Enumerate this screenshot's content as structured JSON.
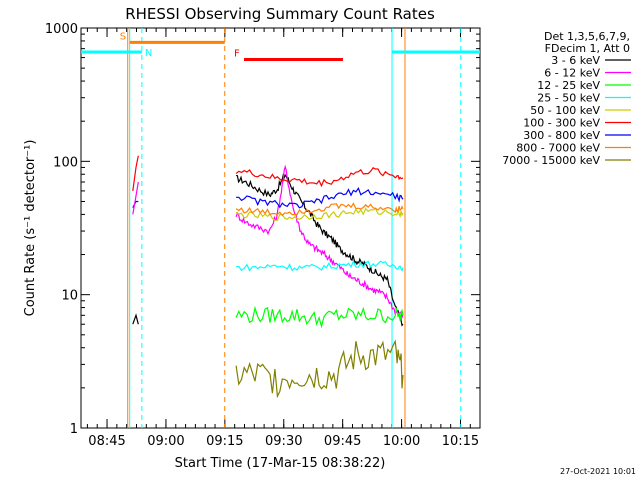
{
  "chart_data": {
    "type": "line",
    "title": "RHESSI Observing Summary Count Rates",
    "xlabel": "Start Time (17-Mar-15 08:38:22)",
    "ylabel": "Count Rate (s⁻¹ detector⁻¹)",
    "x_unit": "minutes after 08:38:22",
    "xlim": [
      0,
      101.6
    ],
    "ylim": [
      1,
      1000
    ],
    "yscale": "log",
    "x_ticks": [
      {
        "label": "08:45",
        "t": 6.63
      },
      {
        "label": "09:00",
        "t": 21.63
      },
      {
        "label": "09:15",
        "t": 36.63
      },
      {
        "label": "09:30",
        "t": 51.63
      },
      {
        "label": "09:45",
        "t": 66.63
      },
      {
        "label": "10:00",
        "t": 81.63
      },
      {
        "label": "10:15",
        "t": 96.63
      }
    ],
    "y_ticks": [
      {
        "label": "1",
        "v": 1
      },
      {
        "label": "10",
        "v": 10
      },
      {
        "label": "100",
        "v": 100
      },
      {
        "label": "1000",
        "v": 1000
      }
    ],
    "legend_header": [
      "Det 1,3,5,6,7,9,",
      "FDecim 1, Att 0"
    ],
    "timestamp": "27-Oct-2021 10:01",
    "flags": [
      {
        "label": "S",
        "color": "#ff7f00",
        "t0": 12.4,
        "t1": 36.6,
        "level": 780
      },
      {
        "label": "N",
        "color": "#00ffff",
        "t0": 0,
        "t1": 15.5,
        "level": 660
      },
      {
        "label": "N",
        "color": "#00ffff",
        "t0": 79.2,
        "t1": 101.6,
        "level": 660
      },
      {
        "label": "F",
        "color": "#ff0000",
        "t0": 41.5,
        "t1": 66.7,
        "level": 580
      }
    ],
    "night_boundaries": [
      {
        "t": 12.4,
        "color": "#00ffff",
        "style": "solid"
      },
      {
        "t": 15.5,
        "color": "#00ffff",
        "style": "dashed"
      },
      {
        "t": 79.2,
        "color": "#00ffff",
        "style": "solid"
      },
      {
        "t": 96.7,
        "color": "#00ffff",
        "style": "dashed"
      }
    ],
    "saa_boundaries": [
      {
        "t": 11.9,
        "color": "#ff7f00",
        "style": "solid"
      },
      {
        "t": 36.6,
        "color": "#ff7f00",
        "style": "dashed"
      },
      {
        "t": 82.5,
        "color": "#ff7f00",
        "style": "solid"
      }
    ],
    "series": [
      {
        "name": "3 - 6 keV",
        "color": "#000000",
        "x": [
          39.5,
          42,
          45,
          48,
          50,
          52,
          54,
          56,
          58,
          60,
          62,
          64,
          66,
          68,
          70,
          72,
          74,
          76,
          78,
          80,
          82
        ],
        "y": [
          75,
          70,
          62,
          56,
          62,
          80,
          62,
          50,
          42,
          34,
          29,
          26,
          22,
          20,
          18,
          17,
          15.5,
          14,
          13,
          8,
          6
        ]
      },
      {
        "name": "6 - 12 keV",
        "color": "#ff00ff",
        "x": [
          39.5,
          42,
          45,
          48,
          50,
          52,
          54,
          56,
          58,
          60,
          62,
          64,
          66,
          68,
          70,
          72,
          74,
          76,
          78,
          80,
          82
        ],
        "y": [
          40,
          35,
          32,
          30,
          40,
          90,
          45,
          30,
          24,
          22,
          20,
          18,
          16,
          14,
          13,
          12,
          11,
          10.5,
          9.5,
          7.5,
          7
        ]
      },
      {
        "name": "12 - 25 keV",
        "color": "#00ff00",
        "x": [
          39.5,
          45,
          50,
          55,
          60,
          65,
          70,
          75,
          80,
          82
        ],
        "y": [
          7,
          7,
          7,
          7,
          6.5,
          7,
          7,
          7,
          7,
          7
        ]
      },
      {
        "name": "25 - 50 keV",
        "color": "#00ffff",
        "x": [
          39.5,
          45,
          50,
          55,
          60,
          65,
          70,
          75,
          80,
          82
        ],
        "y": [
          16,
          16,
          16.5,
          16,
          16,
          16.5,
          17,
          17,
          16.5,
          16
        ]
      },
      {
        "name": "50 - 100 keV",
        "color": "#cccc00",
        "x": [
          39.5,
          45,
          50,
          55,
          60,
          65,
          70,
          75,
          80,
          82
        ],
        "y": [
          40,
          39,
          38,
          38,
          39,
          40,
          42,
          42,
          41,
          41
        ]
      },
      {
        "name": "100 - 300 keV",
        "color": "#ff0000",
        "x": [
          39.5,
          45,
          50,
          55,
          60,
          65,
          70,
          75,
          80,
          82
        ],
        "y": [
          85,
          80,
          74,
          72,
          68,
          72,
          82,
          85,
          78,
          75
        ]
      },
      {
        "name": "300 - 800 keV",
        "color": "#0000ff",
        "x": [
          39.5,
          45,
          50,
          55,
          60,
          65,
          70,
          75,
          80,
          82
        ],
        "y": [
          55,
          50,
          48,
          46,
          50,
          55,
          60,
          58,
          55,
          52
        ]
      },
      {
        "name": "800 - 7000 keV",
        "color": "#ff7f00",
        "x": [
          39.5,
          45,
          50,
          55,
          60,
          65,
          70,
          75,
          80,
          82
        ],
        "y": [
          44,
          42,
          41,
          42,
          44,
          46,
          46,
          45,
          44,
          44
        ]
      },
      {
        "name": "7000 - 15000 keV",
        "color": "#808000",
        "x": [
          39.5,
          45,
          50,
          55,
          60,
          65,
          70,
          75,
          80,
          82
        ],
        "y": [
          2.5,
          2.5,
          2.3,
          2.5,
          2.5,
          2.5,
          3.5,
          3.5,
          3.5,
          2.5
        ]
      }
    ],
    "pre_saa_blip": [
      {
        "color": "#ff0000",
        "x": [
          13.2,
          14.0,
          14.6
        ],
        "y": [
          60,
          90,
          110
        ]
      },
      {
        "color": "#0000ff",
        "x": [
          13.2,
          14.0,
          14.6
        ],
        "y": [
          45,
          50,
          50
        ]
      },
      {
        "color": "#ff00ff",
        "x": [
          13.2,
          14.0,
          14.6
        ],
        "y": [
          40,
          55,
          70
        ]
      },
      {
        "color": "#000000",
        "x": [
          13.2,
          14.0,
          14.6
        ],
        "y": [
          6,
          7,
          6
        ]
      }
    ]
  }
}
